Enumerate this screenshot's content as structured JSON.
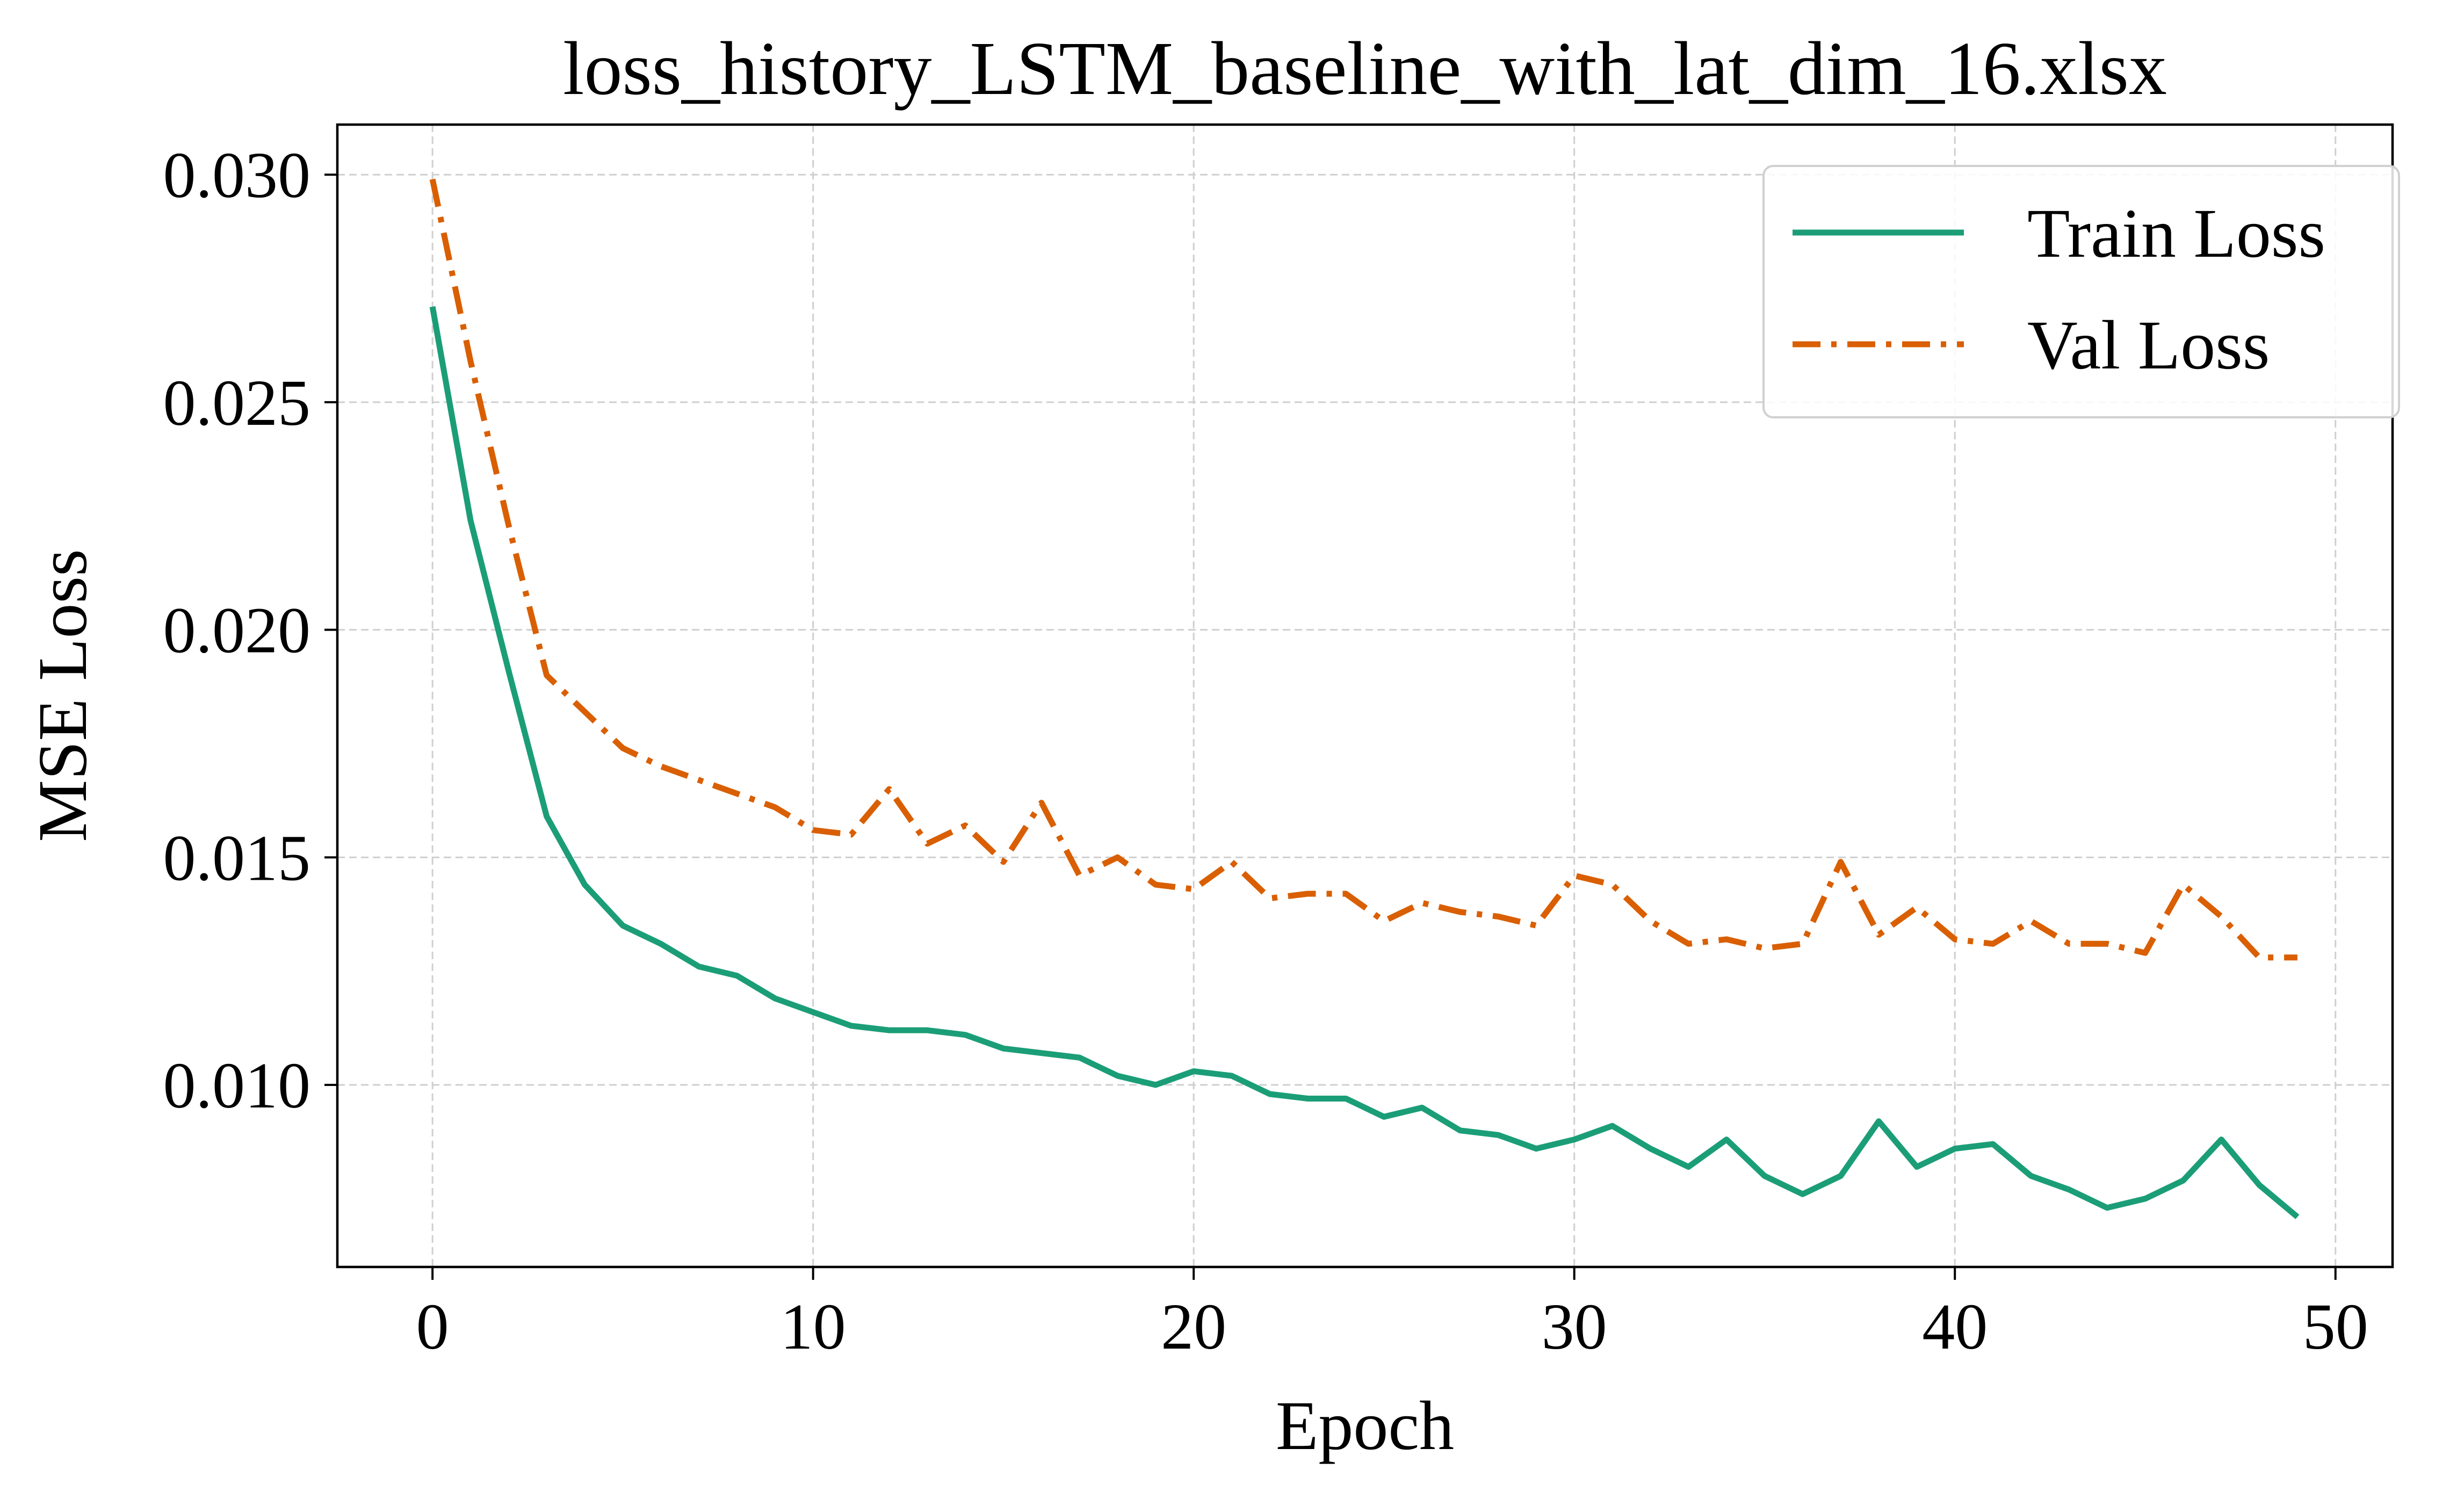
{
  "chart_data": {
    "type": "line",
    "title": "loss_history_LSTM_baseline_with_lat_dim_16.xlsx",
    "xlabel": "Epoch",
    "ylabel": "MSE Loss",
    "xlim": [
      -2.5,
      51.5
    ],
    "ylim": [
      0.006,
      0.0311
    ],
    "xticks": [
      0,
      10,
      20,
      30,
      40,
      50
    ],
    "xtick_labels": [
      "0",
      "10",
      "20",
      "30",
      "40",
      "50"
    ],
    "yticks": [
      0.01,
      0.015,
      0.02,
      0.025,
      0.03
    ],
    "ytick_labels": [
      "0.010",
      "0.015",
      "0.020",
      "0.025",
      "0.030"
    ],
    "grid": true,
    "legend_position": "top-right",
    "x": [
      0,
      1,
      2,
      3,
      4,
      5,
      6,
      7,
      8,
      9,
      10,
      11,
      12,
      13,
      14,
      15,
      16,
      17,
      18,
      19,
      20,
      21,
      22,
      23,
      24,
      25,
      26,
      27,
      28,
      29,
      30,
      31,
      32,
      33,
      34,
      35,
      36,
      37,
      38,
      39,
      40,
      41,
      42,
      43,
      44,
      45,
      46,
      47,
      48,
      49
    ],
    "series": [
      {
        "name": "Train Loss",
        "color": "#1b9e77",
        "style": "solid",
        "values": [
          0.0271,
          0.0224,
          0.0191,
          0.0159,
          0.0144,
          0.0135,
          0.0131,
          0.0126,
          0.0124,
          0.0119,
          0.0116,
          0.0113,
          0.0112,
          0.0112,
          0.0111,
          0.0108,
          0.0107,
          0.0106,
          0.0102,
          0.01,
          0.0103,
          0.0102,
          0.0098,
          0.0097,
          0.0097,
          0.0093,
          0.0095,
          0.009,
          0.0089,
          0.0086,
          0.0088,
          0.0091,
          0.0086,
          0.0082,
          0.0088,
          0.008,
          0.0076,
          0.008,
          0.0092,
          0.0082,
          0.0086,
          0.0087,
          0.008,
          0.0077,
          0.0073,
          0.0075,
          0.0079,
          0.0088,
          0.0078,
          0.0071
        ]
      },
      {
        "name": "Val Loss",
        "color": "#d95f02",
        "style": "dashdot",
        "values": [
          0.0299,
          0.0259,
          0.0223,
          0.019,
          0.0182,
          0.0174,
          0.017,
          0.0167,
          0.0164,
          0.0161,
          0.0156,
          0.0155,
          0.0165,
          0.0153,
          0.0157,
          0.0149,
          0.0162,
          0.0146,
          0.015,
          0.0144,
          0.0143,
          0.0149,
          0.0141,
          0.0142,
          0.0142,
          0.0136,
          0.014,
          0.0138,
          0.0137,
          0.0135,
          0.0146,
          0.0144,
          0.0136,
          0.0131,
          0.0132,
          0.013,
          0.0131,
          0.0149,
          0.0133,
          0.0139,
          0.0132,
          0.0131,
          0.0136,
          0.0131,
          0.0131,
          0.0129,
          0.0144,
          0.0137,
          0.0128,
          0.0128
        ]
      }
    ]
  }
}
